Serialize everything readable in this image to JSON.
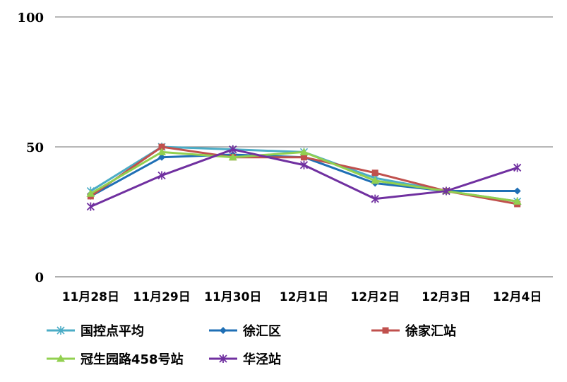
{
  "chart_data": {
    "type": "line",
    "categories": [
      "11月28日",
      "11月29日",
      "11月30日",
      "12月1日",
      "12月2日",
      "12月3日",
      "12月4日"
    ],
    "ylim": [
      0,
      100
    ],
    "yticks": [
      0,
      50,
      100
    ],
    "grid": true,
    "legend_position": "bottom",
    "series": [
      {
        "name": "国控点平均",
        "color": "#4bacc6",
        "marker": "asterisk",
        "values": [
          33,
          50,
          49,
          48,
          38,
          33,
          29
        ]
      },
      {
        "name": "徐汇区",
        "color": "#1f6fb5",
        "marker": "diamond",
        "values": [
          31,
          46,
          47,
          46,
          36,
          33,
          33
        ]
      },
      {
        "name": "徐家汇站",
        "color": "#c0504d",
        "marker": "square",
        "values": [
          31,
          50,
          46,
          46,
          40,
          33,
          28
        ]
      },
      {
        "name": "冠生园路458号站",
        "color": "#92d050",
        "marker": "triangle",
        "values": [
          32,
          48,
          46,
          48,
          37,
          33,
          29
        ]
      },
      {
        "name": "华泾站",
        "color": "#7030a0",
        "marker": "star",
        "values": [
          27,
          39,
          49,
          43,
          30,
          33,
          42
        ]
      }
    ]
  }
}
